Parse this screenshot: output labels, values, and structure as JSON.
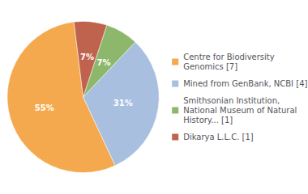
{
  "chart_data": {
    "type": "pie",
    "categories": [
      "Centre for Biodiversity\nGenomics [7]",
      "Mined from GenBank, NCBI [4]",
      "Smithsonian Institution,\nNational Museum of Natural\nHistory... [1]",
      "Dikarya L.L.C. [1]"
    ],
    "values": [
      55,
      31,
      7,
      7
    ],
    "value_labels": [
      "55%",
      "31%",
      "7%",
      "7%"
    ],
    "colors": [
      "#f5a94e",
      "#a8bfe0",
      "#8db86b",
      "#c0634e"
    ],
    "data_labels": true,
    "legend": "right"
  }
}
